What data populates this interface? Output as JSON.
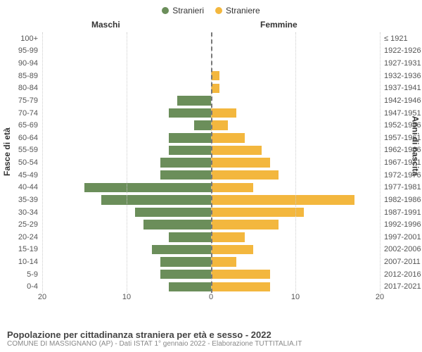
{
  "legend": {
    "series_m": "Stranieri",
    "series_f": "Straniere"
  },
  "column_headers": {
    "left": "Maschi",
    "right": "Femmine"
  },
  "y_axis_titles": {
    "left": "Fasce di età",
    "right": "Anni di nascita"
  },
  "colors": {
    "male": "#6b8e5a",
    "female": "#f3b73e",
    "grid": "#cccccc",
    "center": "#777777",
    "background": "#ffffff"
  },
  "x_axis": {
    "max": 20,
    "ticks": [
      20,
      10,
      0,
      10,
      20
    ]
  },
  "rows": [
    {
      "age": "100+",
      "birth": "≤ 1921",
      "m": 0,
      "f": 0
    },
    {
      "age": "95-99",
      "birth": "1922-1926",
      "m": 0,
      "f": 0
    },
    {
      "age": "90-94",
      "birth": "1927-1931",
      "m": 0,
      "f": 0
    },
    {
      "age": "85-89",
      "birth": "1932-1936",
      "m": 0,
      "f": 1
    },
    {
      "age": "80-84",
      "birth": "1937-1941",
      "m": 0,
      "f": 1
    },
    {
      "age": "75-79",
      "birth": "1942-1946",
      "m": 4,
      "f": 0
    },
    {
      "age": "70-74",
      "birth": "1947-1951",
      "m": 5,
      "f": 3
    },
    {
      "age": "65-69",
      "birth": "1952-1956",
      "m": 2,
      "f": 2
    },
    {
      "age": "60-64",
      "birth": "1957-1961",
      "m": 5,
      "f": 4
    },
    {
      "age": "55-59",
      "birth": "1962-1966",
      "m": 5,
      "f": 6
    },
    {
      "age": "50-54",
      "birth": "1967-1971",
      "m": 6,
      "f": 7
    },
    {
      "age": "45-49",
      "birth": "1972-1976",
      "m": 6,
      "f": 8
    },
    {
      "age": "40-44",
      "birth": "1977-1981",
      "m": 15,
      "f": 5
    },
    {
      "age": "35-39",
      "birth": "1982-1986",
      "m": 13,
      "f": 17
    },
    {
      "age": "30-34",
      "birth": "1987-1991",
      "m": 9,
      "f": 11
    },
    {
      "age": "25-29",
      "birth": "1992-1996",
      "m": 8,
      "f": 8
    },
    {
      "age": "20-24",
      "birth": "1997-2001",
      "m": 5,
      "f": 4
    },
    {
      "age": "15-19",
      "birth": "2002-2006",
      "m": 7,
      "f": 5
    },
    {
      "age": "10-14",
      "birth": "2007-2011",
      "m": 6,
      "f": 3
    },
    {
      "age": "5-9",
      "birth": "2012-2016",
      "m": 6,
      "f": 7
    },
    {
      "age": "0-4",
      "birth": "2017-2021",
      "m": 5,
      "f": 7
    }
  ],
  "footer": {
    "title": "Popolazione per cittadinanza straniera per età e sesso - 2022",
    "subtitle": "COMUNE DI MASSIGNANO (AP) - Dati ISTAT 1° gennaio 2022 - Elaborazione TUTTITALIA.IT"
  }
}
